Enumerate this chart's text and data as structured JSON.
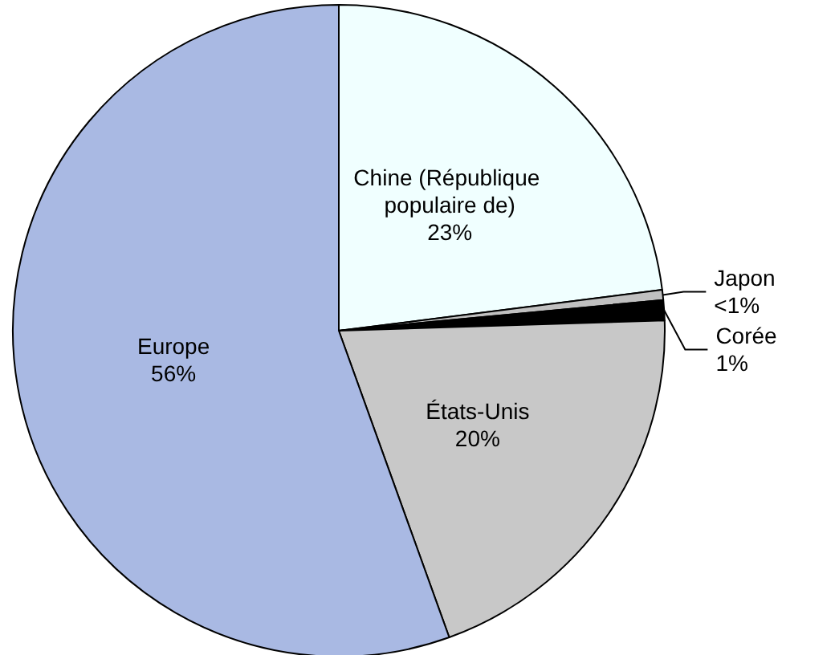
{
  "chart_data": {
    "type": "pie",
    "categories": [
      "Chine (République populaire de)",
      "Japon",
      "Corée",
      "États-Unis",
      "Europe"
    ],
    "values": [
      23,
      0.5,
      1,
      20,
      55.5
    ],
    "value_labels": [
      "23%",
      "<1%",
      "1%",
      "20%",
      "56%"
    ],
    "colors": [
      "#f0ffff",
      "#c0c0c0",
      "#000000",
      "#c8c8c8",
      "#a9b9e3"
    ],
    "legend": false
  }
}
